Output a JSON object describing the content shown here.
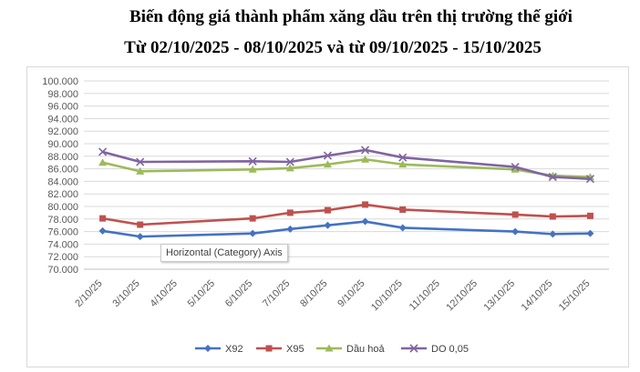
{
  "title_line1": "Biến động giá thành phẩm xăng dầu trên thị trường thế giới",
  "title_line2": "Từ 02/10/2025 - 08/10/2025 và từ 09/10/2025 - 15/10/2025",
  "tooltip": "Horizontal (Category) Axis",
  "chart_data": {
    "type": "line",
    "categories": [
      "2/10/25",
      "3/10/25",
      "4/10/25",
      "5/10/25",
      "6/10/25",
      "7/10/25",
      "8/10/25",
      "9/10/25",
      "10/10/25",
      "11/10/25",
      "12/10/25",
      "13/10/25",
      "14/10/25",
      "15/10/25"
    ],
    "y_ticks": [
      "70.000",
      "72.000",
      "74.000",
      "76.000",
      "78.000",
      "80.000",
      "82.000",
      "84.000",
      "86.000",
      "88.000",
      "90.000",
      "92.000",
      "94.000",
      "96.000",
      "98.000",
      "100.000"
    ],
    "ylim": [
      70000,
      100000
    ],
    "grid": true,
    "legend_position": "bottom",
    "series": [
      {
        "name": "X92",
        "color": "#4472c4",
        "marker": "diamond",
        "values": [
          76100,
          75200,
          null,
          null,
          75700,
          76400,
          77000,
          77600,
          76600,
          null,
          null,
          76000,
          75600,
          75700
        ]
      },
      {
        "name": "X95",
        "color": "#c0504d",
        "marker": "square",
        "values": [
          78100,
          77100,
          null,
          null,
          78100,
          79000,
          79400,
          80300,
          79500,
          null,
          null,
          78700,
          78400,
          78500
        ]
      },
      {
        "name": "Dầu hoả",
        "color": "#9bbb59",
        "marker": "triangle",
        "values": [
          87000,
          85600,
          null,
          null,
          85900,
          86100,
          86700,
          87500,
          86700,
          null,
          null,
          85900,
          84900,
          84700
        ]
      },
      {
        "name": "DO 0,05",
        "color": "#8064a2",
        "marker": "x",
        "values": [
          88700,
          87100,
          null,
          null,
          87200,
          87100,
          88100,
          89000,
          87800,
          null,
          null,
          86300,
          84700,
          84400
        ]
      }
    ]
  }
}
